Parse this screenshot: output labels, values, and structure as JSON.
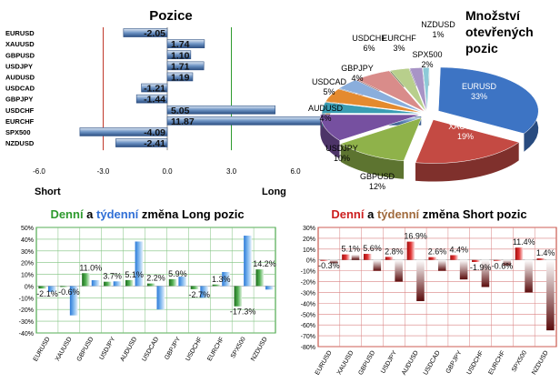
{
  "colors": {
    "green": "#2e9a2e",
    "blue": "#2f6fd6",
    "red": "#cc1f1f",
    "brown": "#a06a3c",
    "bar_blue": "#4a7ab8",
    "grid_red": "#c0392b"
  },
  "pozice": {
    "title": "Pozice",
    "short_label": "Short",
    "long_label": "Long",
    "chart_data": {
      "type": "bar",
      "orientation": "horizontal",
      "title": "Pozice",
      "categories": [
        "EURUSD",
        "XAUUSD",
        "GBPUSD",
        "USDJPY",
        "AUDUSD",
        "USDCAD",
        "GBPJPY",
        "USDCHF",
        "EURCHF",
        "SPX500",
        "NZDUSD"
      ],
      "values": [
        -2.05,
        1.74,
        1.1,
        1.71,
        1.19,
        -1.21,
        -1.44,
        5.05,
        11.87,
        -4.09,
        -2.41
      ],
      "value_labels": [
        "-2.05",
        "1.74",
        "1.10",
        "1.71",
        "1.19",
        "-1.21",
        "-1.44",
        "5.05",
        "11.87",
        "-4.09",
        "-2.41"
      ],
      "xlim": [
        -6,
        6
      ],
      "xticks": [
        "-6.0",
        "-3.0",
        "0.0",
        "3.0",
        "6.0"
      ]
    }
  },
  "pie": {
    "title_lines": [
      "Množství",
      "otevřených",
      "pozic"
    ],
    "chart_data": {
      "type": "pie",
      "labels": [
        "EURUSD",
        "XAUUSD",
        "GBPUSD",
        "USDJPY",
        "AUDUSD",
        "USDCAD",
        "GBPJPY",
        "USDCHF",
        "EURCHF",
        "SPX500",
        "NZDUSD"
      ],
      "values": [
        33,
        19,
        12,
        10,
        4,
        5,
        4,
        6,
        3,
        2,
        1
      ],
      "value_labels": [
        "33%",
        "19%",
        "12%",
        "10%",
        "4%",
        "5%",
        "4%",
        "6%",
        "3%",
        "2%",
        "1%"
      ],
      "colors": [
        "#3d74c4",
        "#c44a43",
        "#8fb24a",
        "#7650a0",
        "#3a9db3",
        "#e48a2e",
        "#8aaedc",
        "#d98c8a",
        "#b8cf8c",
        "#a894c6",
        "#8dcad8"
      ]
    }
  },
  "long_change": {
    "title_parts": [
      "Denní",
      " a ",
      "týdenní",
      " změna Long pozic"
    ],
    "chart_data": {
      "type": "bar",
      "categories": [
        "EURUSD",
        "XAUUSD",
        "GBPUSD",
        "USDJPY",
        "AUDUSD",
        "USDCAD",
        "GBPJPY",
        "USDCHF",
        "EURCHF",
        "SPX500",
        "NZDUSD"
      ],
      "series": [
        {
          "values": [
            -2.1,
            -0.6,
            11.0,
            3.7,
            5.1,
            2.2,
            5.9,
            -2.7,
            1.3,
            -17.3,
            14.2
          ]
        },
        {
          "values": [
            -5,
            -25,
            5,
            4,
            38,
            -20,
            8,
            -10,
            12,
            43,
            -3
          ]
        }
      ],
      "labels": [
        "-2.1%",
        "-0.6%",
        "11.0%",
        "3.7%",
        "5.1%",
        "2.2%",
        "5.9%",
        "-2.7%",
        "1.3%",
        "-17.3%",
        "14.2%"
      ],
      "ylim": [
        -40,
        50
      ],
      "yticks": [
        "50%",
        "40%",
        "30%",
        "20%",
        "10%",
        "0%",
        "-10%",
        "-20%",
        "-30%",
        "-40%"
      ]
    }
  },
  "short_change": {
    "title_parts": [
      "Denní",
      " a ",
      "týdenní",
      " změna Short pozic"
    ],
    "chart_data": {
      "type": "bar",
      "categories": [
        "EURUSD",
        "XAUUSD",
        "GBPUSD",
        "USDJPY",
        "AUDUSD",
        "USDCAD",
        "GBPJPY",
        "USDCHF",
        "EURCHF",
        "SPX500",
        "NZDUSD"
      ],
      "series": [
        {
          "values": [
            -0.3,
            5.1,
            5.6,
            2.8,
            16.9,
            2.6,
            4.4,
            -1.9,
            -0.6,
            11.4,
            1.4
          ]
        },
        {
          "values": [
            -3,
            5,
            -10,
            -20,
            -38,
            -10,
            -18,
            -25,
            -5,
            -30,
            -65
          ]
        }
      ],
      "labels": [
        "-0.3%",
        "5.1%",
        "5.6%",
        "2.8%",
        "16.9%",
        "2.6%",
        "4.4%",
        "-1.9%",
        "-0.6%",
        "11.4%",
        "1.4%"
      ],
      "ylim": [
        -80,
        30
      ],
      "yticks": [
        "30%",
        "20%",
        "10%",
        "0%",
        "-10%",
        "-20%",
        "-30%",
        "-40%",
        "-50%",
        "-60%",
        "-70%",
        "-80%"
      ]
    }
  }
}
